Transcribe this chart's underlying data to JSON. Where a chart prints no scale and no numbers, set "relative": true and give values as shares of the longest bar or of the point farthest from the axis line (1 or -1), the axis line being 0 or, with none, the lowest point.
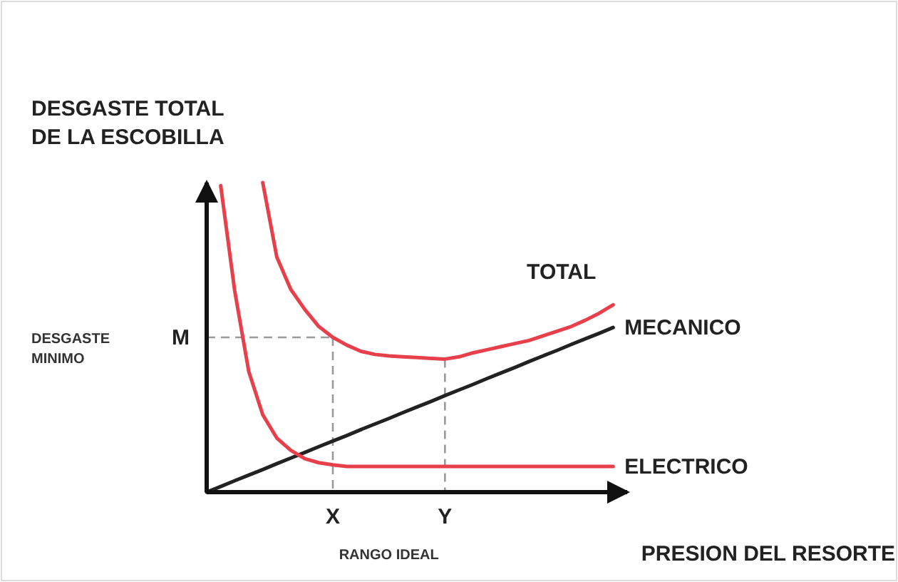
{
  "chart_data": {
    "type": "line",
    "relative": true,
    "xlabel": "PRESION DEL RESORTE",
    "ylabel": "DESGASTE TOTAL DE LA ESCOBILLA",
    "legend": false,
    "marker": "none",
    "categories": [
      null,
      null,
      null,
      null,
      null,
      null,
      null,
      null,
      null,
      null,
      null,
      null,
      null,
      null,
      null,
      null,
      null,
      null,
      null,
      null,
      null,
      null,
      null,
      null,
      null,
      null,
      null,
      null,
      null,
      null,
      null
    ],
    "annotations": [
      "DESGASTE MINIMO",
      "X",
      "Y",
      "RANGO IDEAL"
    ],
    "ref_lines": [
      {
        "axis": "y",
        "value": 0.5,
        "label": "M",
        "color": "#9a9a9a",
        "line_style": "dashed"
      }
    ],
    "series": [
      {
        "name": "TOTAL",
        "color": "#e8404a",
        "values": [
          null,
          null,
          null,
          null,
          1.0,
          0.76,
          0.655,
          0.59,
          0.535,
          0.5,
          0.475,
          0.455,
          0.445,
          0.44,
          0.437,
          0.435,
          0.432,
          0.43,
          0.437,
          0.45,
          0.46,
          0.47,
          0.48,
          0.49,
          0.505,
          0.52,
          0.535,
          0.555,
          0.578,
          0.605,
          null
        ]
      },
      {
        "name": "MECANICO",
        "color": "#222222",
        "values": [
          0,
          0.018,
          0.037,
          0.055,
          0.073,
          0.092,
          0.11,
          0.128,
          0.147,
          0.165,
          0.183,
          0.202,
          0.22,
          0.238,
          0.257,
          0.275,
          0.293,
          0.312,
          0.33,
          0.348,
          0.367,
          0.385,
          0.403,
          0.422,
          0.44,
          0.458,
          0.477,
          0.495,
          0.513,
          0.532,
          null
        ]
      },
      {
        "name": "ELECTRICO",
        "color": "#e8404a",
        "values": [
          null,
          0.99,
          0.65,
          0.39,
          0.25,
          0.175,
          0.135,
          0.108,
          0.095,
          0.088,
          0.083,
          0.083,
          0.083,
          0.083,
          0.083,
          0.083,
          0.083,
          0.083,
          0.083,
          0.083,
          0.083,
          0.083,
          0.083,
          0.083,
          0.083,
          0.083,
          0.083,
          0.083,
          0.083,
          0.083,
          null
        ]
      }
    ]
  }
}
